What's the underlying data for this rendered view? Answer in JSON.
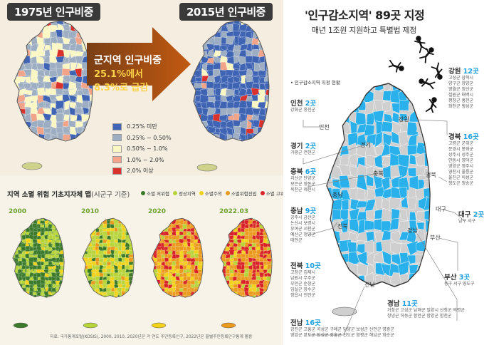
{
  "panel1": {
    "year_left": "1975년 인구비중",
    "year_right": "2015년 인구비중",
    "arrow_title": "군지역 인구비중",
    "arrow_line2": "25.1%에서",
    "arrow_line3": "8.3%로 급감",
    "legend": [
      {
        "label": "0.25% 미만",
        "color": "#3f64b4"
      },
      {
        "label": "0.25% ~ 0.50%",
        "color": "#9eaec2"
      },
      {
        "label": "0.50% ~ 1.0%",
        "color": "#fbf7c4"
      },
      {
        "label": "1.0% ~ 2.0%",
        "color": "#f2a489"
      },
      {
        "label": "2.0% 이상",
        "color": "#d9312c"
      }
    ]
  },
  "panel2": {
    "title": "지역 소멸 위험 기초지자체 맵",
    "title_suffix": "(시군구 기준)",
    "legend": [
      {
        "label": "소멸 저위험",
        "color": "#3a7a2a"
      },
      {
        "label": "정상지역",
        "color": "#b7d43a"
      },
      {
        "label": "소멸주의",
        "color": "#f2d21a"
      },
      {
        "label": "소멸위험진입",
        "color": "#eb9a1e"
      },
      {
        "label": "소멸 고위험",
        "color": "#d9232a"
      }
    ],
    "years": [
      "2000",
      "2010",
      "2020",
      "2022.03"
    ],
    "source": "자료: 국가통계포털(KOSIS), 2000, 2010, 2020년은 각 연도 주민등록인구, 2022년은 월별주민등록인구통계 활용"
  },
  "panel3": {
    "title": "'인구감소지역' 89곳 지정",
    "subtitle": "매년 1조원 지원하고 특별법 제정",
    "map_label": "• 인구감소지역 지정 현황",
    "colors": {
      "designated": "#2ab0ea",
      "other": "#cfcfcf"
    },
    "map_labels": {
      "incheon": "인천",
      "gyeonggi": "경기",
      "gangwon": "강원",
      "chungbuk": "충북",
      "chungnam": "충남",
      "gyeongbuk": "경북",
      "jeonbuk": "전북",
      "daegu": "대구",
      "busan": "부산",
      "gyeongnam": "경남",
      "jeonnam": "전남"
    },
    "regions": {
      "incheon": {
        "name": "인천",
        "count": "2곳",
        "lines": [
          "강화군 옹진군"
        ]
      },
      "gyeonggi": {
        "name": "경기",
        "count": "2곳",
        "lines": [
          "가평군 연천군"
        ]
      },
      "chungbuk": {
        "name": "충북",
        "count": "6곳",
        "lines": [
          "괴산군 단양군",
          "보은군 영동군",
          "옥천군 제천시"
        ]
      },
      "chungnam": {
        "name": "충남",
        "count": "9곳",
        "lines": [
          "공주시 금산군",
          "논산시 보령시",
          "부여군 서천군",
          "예산군 청양군",
          "태안군"
        ]
      },
      "jeonbuk": {
        "name": "전북",
        "count": "10곳",
        "lines": [
          "고창군 김제시",
          "남원시 무주군",
          "부안군 순창군",
          "임실군 장수군",
          "정읍시 진안군"
        ]
      },
      "jeonnam": {
        "name": "전남",
        "count": "16곳",
        "lines": [
          "강진군 고흥군 곡성군 구례군 담양군 보성군 신안군 영광군",
          "영암군 완도군 장성군 장흥군 진도군 함평군 해남군 화순군"
        ]
      },
      "gangwon": {
        "name": "강원",
        "count": "12곳",
        "lines": [
          "고성군 삼척시",
          "양구군 양양군",
          "영월군 정선군",
          "철원군 태백시",
          "평창군 홍천군",
          "화천군 횡성군"
        ]
      },
      "gyeongbuk": {
        "name": "경북",
        "count": "16곳",
        "lines": [
          "고령군 군위군",
          "문경시 봉화군",
          "상주시 성주군",
          "안동시 영덕군",
          "영양군 영주시",
          "영천시 울릉군",
          "울진군 의성군",
          "청도군 청송군"
        ]
      },
      "daegu": {
        "name": "대구",
        "count": "2곳",
        "lines": [
          "남구 서구"
        ]
      },
      "busan": {
        "name": "부산",
        "count": "3곳",
        "lines": [
          "동구 서구 영도구"
        ]
      },
      "gyeongnam": {
        "name": "경남",
        "count": "11곳",
        "lines": [
          "거창군 고성군 남해군 밀양시 산청군 의령군",
          "창녕군 하동군 함안군 함양군 합천군"
        ]
      }
    }
  }
}
